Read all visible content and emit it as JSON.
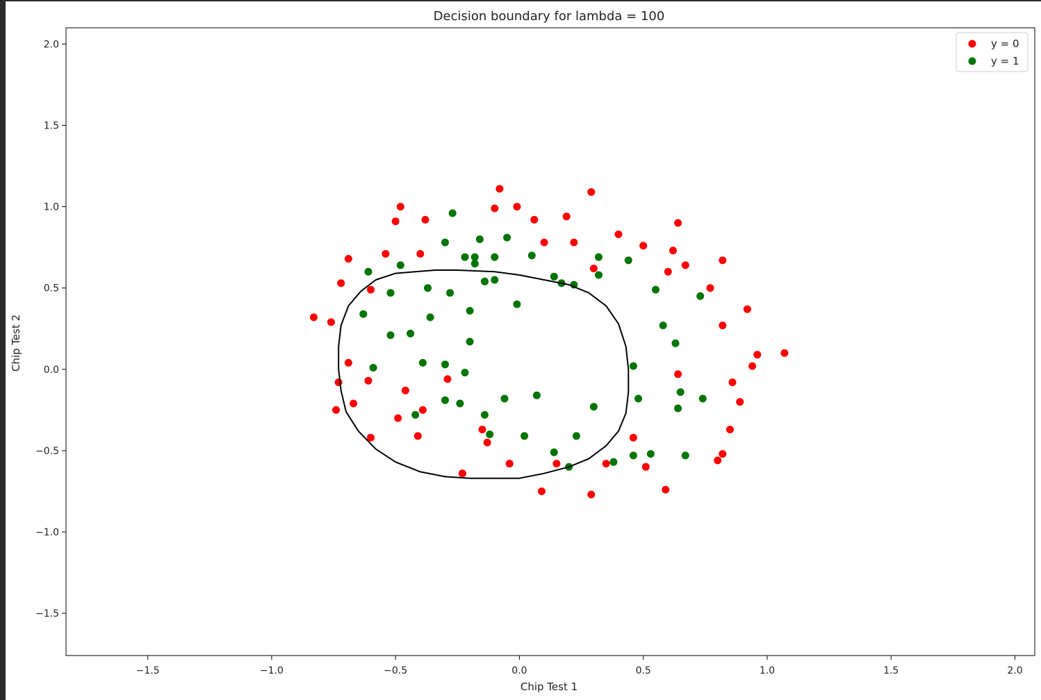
{
  "chart_data": {
    "type": "scatter",
    "title": "Decision boundary for lambda = 100",
    "xlabel": "Chip Test 1",
    "ylabel": "Chip Test 2",
    "xlim": [
      -1.83,
      2.08
    ],
    "ylim": [
      -1.76,
      2.1
    ],
    "x_ticks": [
      -1.5,
      -1.0,
      -0.5,
      0.0,
      0.5,
      1.0,
      1.5,
      2.0
    ],
    "x_tick_labels": [
      "−1.5",
      "−1.0",
      "−0.5",
      "0.0",
      "0.5",
      "1.0",
      "1.5",
      "2.0"
    ],
    "y_ticks": [
      -1.5,
      -1.0,
      -0.5,
      0.0,
      0.5,
      1.0,
      1.5,
      2.0
    ],
    "y_tick_labels": [
      "−1.5",
      "−1.0",
      "−0.5",
      "0.0",
      "0.5",
      "1.0",
      "1.5",
      "2.0"
    ],
    "grid": false,
    "legend_position": "top-right",
    "series": [
      {
        "name": "y = 0",
        "color": "#ff0000",
        "x": [
          -0.83,
          -0.76,
          -0.72,
          -0.69,
          -0.69,
          -0.73,
          -0.74,
          -0.67,
          -0.6,
          -0.61,
          -0.54,
          -0.5,
          -0.48,
          -0.38,
          -0.4,
          -0.46,
          -0.49,
          -0.39,
          -0.41,
          -0.29,
          -0.23,
          -0.15,
          -0.13,
          -0.08,
          -0.1,
          -0.04,
          -0.01,
          0.06,
          0.1,
          0.19,
          0.22,
          0.29,
          0.3,
          0.4,
          0.5,
          0.62,
          0.64,
          0.6,
          0.67,
          0.77,
          0.82,
          0.92,
          0.82,
          1.07,
          0.96,
          0.94,
          0.86,
          0.64,
          0.89,
          0.85,
          0.46,
          0.51,
          0.59,
          0.35,
          0.15,
          0.09,
          0.29,
          -0.04,
          -0.23,
          0.82,
          0.8,
          -0.6
        ],
        "y": [
          0.32,
          0.29,
          0.53,
          0.68,
          0.04,
          -0.08,
          -0.25,
          -0.21,
          0.49,
          -0.07,
          0.71,
          0.91,
          1.0,
          0.92,
          0.71,
          -0.13,
          -0.3,
          -0.25,
          -0.41,
          -0.06,
          -0.64,
          -0.37,
          -0.45,
          1.11,
          0.99,
          -0.58,
          1.0,
          0.92,
          0.78,
          0.94,
          0.78,
          1.09,
          0.62,
          0.83,
          0.76,
          0.73,
          0.9,
          0.6,
          0.64,
          0.5,
          0.67,
          0.37,
          0.27,
          0.1,
          0.09,
          0.02,
          -0.08,
          -0.03,
          -0.2,
          -0.37,
          -0.42,
          -0.6,
          -0.74,
          -0.58,
          -0.58,
          -0.75,
          -0.77,
          -0.58,
          -0.64,
          -0.52,
          -0.56,
          -0.42
        ]
      },
      {
        "name": "y = 1",
        "color": "#007500",
        "x": [
          -0.61,
          -0.48,
          -0.27,
          -0.3,
          -0.22,
          -0.18,
          -0.18,
          -0.16,
          -0.1,
          -0.05,
          0.05,
          0.14,
          0.17,
          0.22,
          0.32,
          0.32,
          0.44,
          -0.63,
          -0.52,
          -0.37,
          -0.28,
          -0.14,
          -0.1,
          -0.01,
          -0.2,
          -0.36,
          -0.44,
          -0.52,
          -0.2,
          -0.59,
          -0.39,
          -0.3,
          -0.22,
          -0.24,
          -0.3,
          -0.42,
          -0.14,
          -0.12,
          0.02,
          -0.06,
          0.07,
          0.14,
          0.23,
          0.2,
          0.3,
          0.38,
          0.46,
          0.46,
          0.48,
          0.53,
          0.55,
          0.58,
          0.63,
          0.73,
          0.65,
          0.64,
          0.67,
          0.74
        ],
        "y": [
          0.6,
          0.64,
          0.96,
          0.78,
          0.69,
          0.69,
          0.65,
          0.8,
          0.69,
          0.81,
          0.7,
          0.57,
          0.53,
          0.52,
          0.69,
          0.58,
          0.67,
          0.34,
          0.47,
          0.5,
          0.47,
          0.54,
          0.55,
          0.4,
          0.36,
          0.32,
          0.22,
          0.21,
          0.17,
          0.01,
          0.04,
          0.03,
          -0.02,
          -0.21,
          -0.19,
          -0.28,
          -0.28,
          -0.4,
          -0.41,
          -0.18,
          -0.16,
          -0.51,
          -0.41,
          -0.6,
          -0.23,
          -0.57,
          0.02,
          -0.53,
          -0.18,
          -0.52,
          0.49,
          0.27,
          0.16,
          0.45,
          -0.14,
          -0.24,
          -0.53,
          -0.18
        ]
      }
    ],
    "boundary": {
      "color": "#000000",
      "x": [
        -0.25,
        -0.1,
        0.0,
        0.1,
        0.2,
        0.28,
        0.35,
        0.4,
        0.43,
        0.44,
        0.44,
        0.43,
        0.4,
        0.35,
        0.28,
        0.2,
        0.1,
        0.0,
        -0.1,
        -0.2,
        -0.3,
        -0.4,
        -0.5,
        -0.58,
        -0.65,
        -0.7,
        -0.72,
        -0.73,
        -0.73,
        -0.72,
        -0.69,
        -0.64,
        -0.58,
        -0.5,
        -0.42,
        -0.34
      ],
      "y": [
        0.61,
        0.6,
        0.58,
        0.55,
        0.52,
        0.47,
        0.39,
        0.28,
        0.14,
        0.0,
        -0.14,
        -0.27,
        -0.38,
        -0.47,
        -0.55,
        -0.6,
        -0.64,
        -0.67,
        -0.67,
        -0.67,
        -0.66,
        -0.63,
        -0.57,
        -0.49,
        -0.38,
        -0.26,
        -0.13,
        0.0,
        0.14,
        0.27,
        0.39,
        0.48,
        0.55,
        0.59,
        0.6,
        0.61
      ]
    }
  }
}
